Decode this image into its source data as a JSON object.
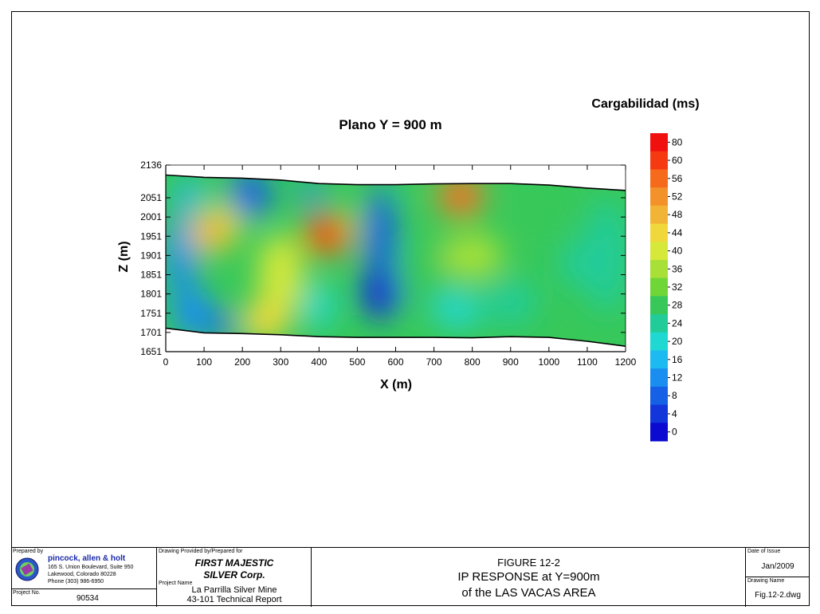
{
  "chart_data": {
    "type": "heatmap",
    "title": "Plano Y = 900 m",
    "xlabel": "X (m)",
    "ylabel": "Z (m)",
    "xlim": [
      0,
      1200
    ],
    "ylim": [
      1651,
      2136
    ],
    "x_ticks": [
      "0",
      "100",
      "200",
      "300",
      "400",
      "500",
      "600",
      "700",
      "800",
      "900",
      "1000",
      "1100",
      "1200"
    ],
    "y_ticks": [
      "2136",
      "2051",
      "2001",
      "1951",
      "1901",
      "1851",
      "1801",
      "1751",
      "1701",
      "1651"
    ],
    "colorbar": {
      "title": "Cargabilidad (ms)",
      "ticks": [
        "80",
        "60",
        "56",
        "52",
        "48",
        "44",
        "40",
        "36",
        "32",
        "28",
        "24",
        "20",
        "16",
        "12",
        "8",
        "4",
        "0"
      ],
      "colors": [
        "#f01010",
        "#f53a12",
        "#f66a1c",
        "#f3922a",
        "#f2b436",
        "#f0d83c",
        "#d6e83a",
        "#a8e038",
        "#70d638",
        "#38c85a",
        "#22cc98",
        "#20d8d2",
        "#1cbaf0",
        "#1a8ef0",
        "#1660e6",
        "#1236da",
        "#0a0ad0"
      ]
    },
    "top_boundary": [
      [
        0,
        2110
      ],
      [
        100,
        2104
      ],
      [
        200,
        2102
      ],
      [
        300,
        2097
      ],
      [
        400,
        2088
      ],
      [
        500,
        2085
      ],
      [
        600,
        2085
      ],
      [
        700,
        2087
      ],
      [
        800,
        2088
      ],
      [
        900,
        2088
      ],
      [
        1000,
        2084
      ],
      [
        1100,
        2076
      ],
      [
        1200,
        2070
      ]
    ],
    "bottom_boundary": [
      [
        0,
        1712
      ],
      [
        100,
        1700
      ],
      [
        200,
        1698
      ],
      [
        300,
        1695
      ],
      [
        400,
        1690
      ],
      [
        500,
        1688
      ],
      [
        600,
        1688
      ],
      [
        700,
        1688
      ],
      [
        800,
        1687
      ],
      [
        900,
        1690
      ],
      [
        1000,
        1688
      ],
      [
        1100,
        1678
      ],
      [
        1200,
        1665
      ]
    ],
    "anomalies": [
      {
        "x": 420,
        "z": 1955,
        "value": 56
      },
      {
        "x": 770,
        "z": 2055,
        "value": 50
      },
      {
        "x": 120,
        "z": 1962,
        "value": 44
      },
      {
        "x": 260,
        "z": 1730,
        "value": 42
      },
      {
        "x": 560,
        "z": 1800,
        "value": 4
      },
      {
        "x": 220,
        "z": 2060,
        "value": 8
      },
      {
        "x": 70,
        "z": 1750,
        "value": 10
      },
      {
        "x": 1080,
        "z": 1880,
        "value": 22
      }
    ]
  },
  "title_block": {
    "prepared_by_label": "Prepared by",
    "company_name": "pincock, allen & holt",
    "company_address_1": "165 S. Union Boulevard, Suite 950",
    "company_address_2": "Lakewood, Colorado 80228",
    "company_phone": "Phone (303) 986-6950",
    "project_no_label": "Project No.",
    "project_no": "90534",
    "drawing_provided_label": "Drawing Provided by/Prepared for",
    "client_1": "FIRST MAJESTIC",
    "client_2": "SILVER Corp.",
    "project_name_label": "Project Name",
    "project_name_1": "La Parrilla Silver Mine",
    "project_name_2": "43-101 Technical Report",
    "figure_number": "FIGURE 12-2",
    "figure_title_1": "IP RESPONSE at Y=900m",
    "figure_title_2": "of the LAS VACAS AREA",
    "date_label": "Date of Issue",
    "date": "Jan/2009",
    "drawing_name_label": "Drawing Name",
    "drawing_name": "Fig.12-2.dwg",
    "logo_icon": "pah-globe-logo"
  }
}
